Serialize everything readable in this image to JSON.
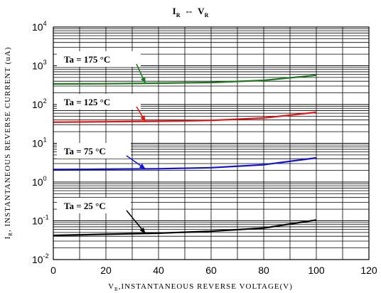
{
  "chart_data": {
    "type": "line",
    "title": {
      "main_a": "I",
      "sub_a": "R",
      "sep": "--",
      "main_b": "V",
      "sub_b": "R"
    },
    "xlabel": {
      "sub": "R",
      "text": ",INSTANTANEOUS REVERSE VOLTAGE(V)",
      "main": "V"
    },
    "ylabel": {
      "sub": "R",
      "text": ", INSTANTANEOUS REVERSE CURRENT (uA)",
      "main": "I"
    },
    "xlim": [
      0,
      120
    ],
    "ylim": [
      0.01,
      10000
    ],
    "yscale": "log",
    "grid": true,
    "x_ticks": [
      "0",
      "20",
      "40",
      "60",
      "80",
      "100",
      "120"
    ],
    "y_ticks": [
      {
        "base": "10",
        "exp": "-2"
      },
      {
        "base": "10",
        "exp": "-1"
      },
      {
        "base": "10",
        "exp": "0"
      },
      {
        "base": "10",
        "exp": "1"
      },
      {
        "base": "10",
        "exp": "2"
      },
      {
        "base": "10",
        "exp": "3"
      },
      {
        "base": "10",
        "exp": "4"
      }
    ],
    "series": [
      {
        "name": "Ta = 175 °C",
        "color": "#1a7a1a",
        "x": [
          0,
          20,
          40,
          60,
          80,
          100
        ],
        "y": [
          340,
          345,
          355,
          370,
          420,
          570
        ]
      },
      {
        "name": "Ta = 125 °C",
        "color": "#ee1111",
        "x": [
          0,
          20,
          40,
          60,
          80,
          100
        ],
        "y": [
          35,
          36,
          37,
          39,
          45,
          63
        ]
      },
      {
        "name": "Ta = 75 °C",
        "color": "#1111dd",
        "x": [
          0,
          20,
          40,
          60,
          80,
          100
        ],
        "y": [
          2.1,
          2.15,
          2.2,
          2.35,
          2.8,
          4.2
        ]
      },
      {
        "name": "Ta = 25 °C",
        "color": "#000000",
        "x": [
          0,
          20,
          40,
          60,
          80,
          100
        ],
        "y": [
          0.042,
          0.045,
          0.048,
          0.054,
          0.065,
          0.105
        ]
      }
    ],
    "annotations": [
      {
        "series": 0,
        "label": "Ta = 175 °C",
        "point_x": 35
      },
      {
        "series": 1,
        "label": "Ta = 125 °C",
        "point_x": 35
      },
      {
        "series": 2,
        "label": "Ta = 75 °C",
        "point_x": 35
      },
      {
        "series": 3,
        "label": "Ta = 25 °C",
        "point_x": 35
      }
    ]
  }
}
